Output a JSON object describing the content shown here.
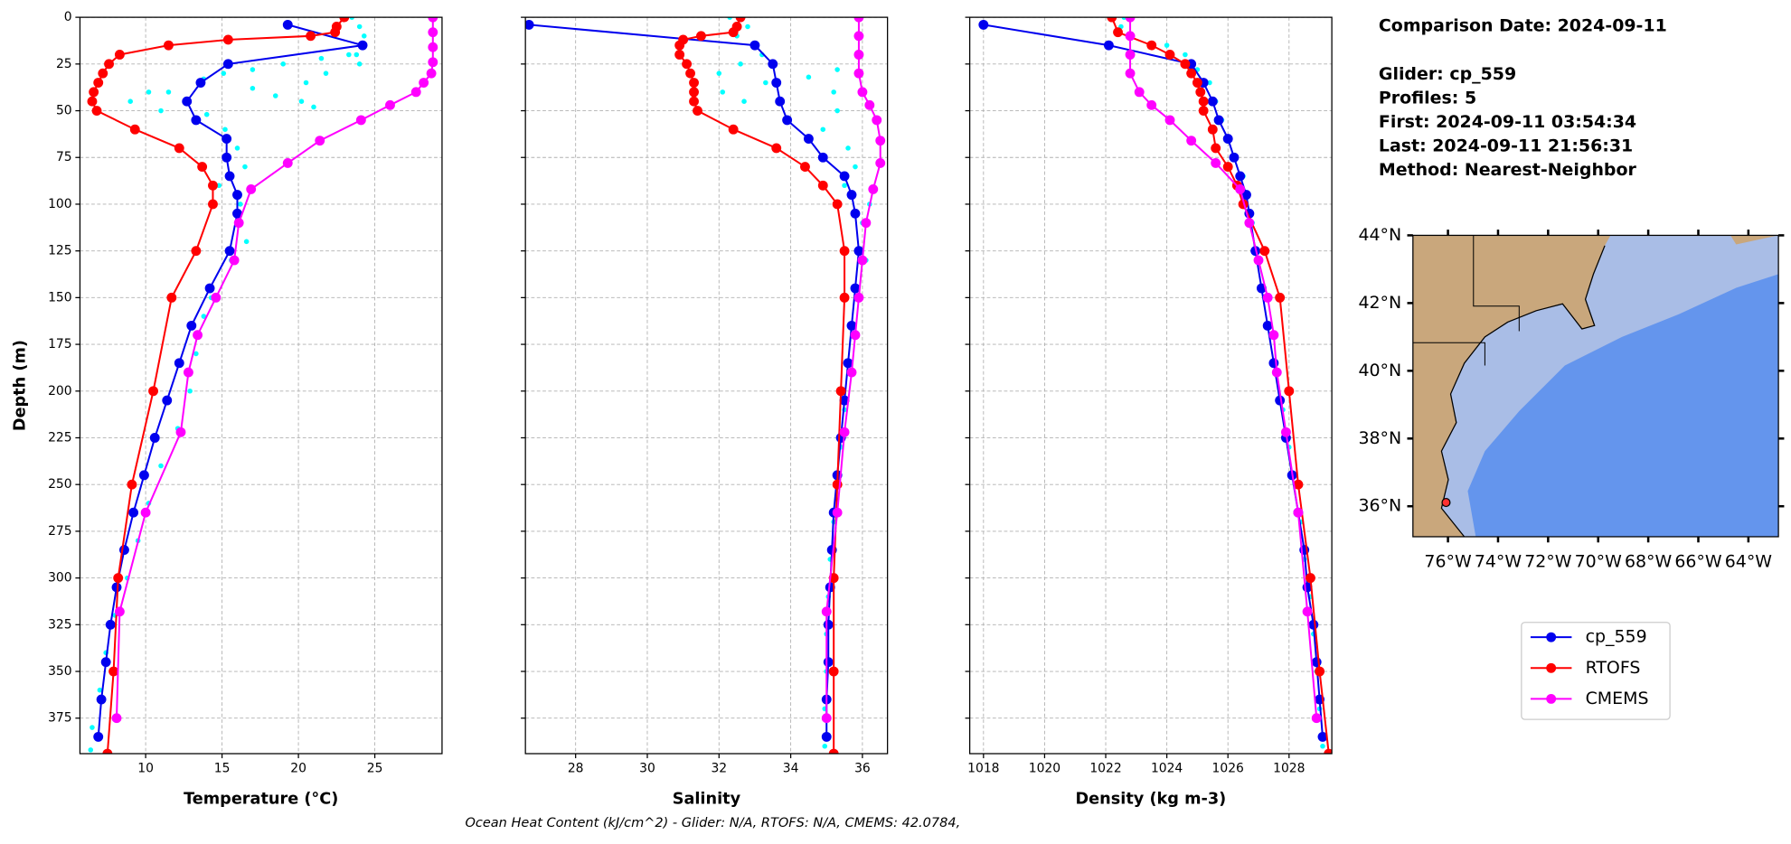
{
  "chart_data": [
    {
      "type": "line",
      "xlabel": "Temperature (°C)",
      "ylabel": "Depth (m)",
      "invert_y": true,
      "grid": true,
      "ytick_labels": true,
      "xlim": [
        5.7,
        29.4
      ],
      "ylim": [
        0,
        394
      ],
      "xticks": [
        10,
        15,
        20,
        25
      ],
      "yticks": [
        0,
        25,
        50,
        75,
        100,
        125,
        150,
        175,
        200,
        225,
        250,
        275,
        300,
        325,
        350,
        375
      ],
      "points": {
        "color": "#00ffff",
        "values": [
          23.5,
          24,
          24.3,
          23.8,
          24,
          23.3,
          21.5,
          19,
          17,
          15.1,
          13.8,
          11.5,
          10.2,
          9,
          11,
          14,
          17,
          18.5,
          20.2,
          21,
          20.5,
          21.8,
          15.2,
          16,
          16.5,
          14.8,
          16.2,
          16.6,
          15.6,
          14.3,
          13.8,
          13.3,
          12.9,
          12.1,
          11,
          10.2,
          9.5,
          8.8,
          8,
          7.4,
          7,
          6.5,
          6.4
        ],
        "depth": [
          0,
          5,
          10,
          20,
          25,
          20,
          22,
          25,
          28,
          30,
          33,
          40,
          40,
          45,
          50,
          52,
          38,
          42,
          45,
          48,
          35,
          30,
          60,
          70,
          80,
          90,
          100,
          120,
          130,
          150,
          160,
          180,
          200,
          220,
          240,
          260,
          280,
          300,
          320,
          340,
          360,
          380,
          392
        ]
      },
      "series": [
        {
          "name": "cp_559",
          "color": "#0000ee",
          "values": [
            19.3,
            24.2,
            15.4,
            13.6,
            12.7,
            13.3,
            15.3,
            15.3,
            15.5,
            16,
            16,
            15.5,
            14.2,
            13,
            12.2,
            11.4,
            10.6,
            9.9,
            9.2,
            8.6,
            8.1,
            7.7,
            7.4,
            7.1,
            6.9
          ],
          "depth": [
            4,
            15,
            25,
            35,
            45,
            55,
            65,
            75,
            85,
            95,
            105,
            125,
            145,
            165,
            185,
            205,
            225,
            245,
            265,
            285,
            305,
            325,
            345,
            365,
            385
          ]
        },
        {
          "name": "RTOFS",
          "color": "#ff0000",
          "values": [
            23,
            22.5,
            22.4,
            20.8,
            15.4,
            11.5,
            8.3,
            7.6,
            7.2,
            6.9,
            6.6,
            6.5,
            6.8,
            9.3,
            12.2,
            13.7,
            14.4,
            14.4,
            13.3,
            11.7,
            10.5,
            9.1,
            8.2,
            7.9,
            7.5
          ],
          "depth": [
            0,
            5,
            8,
            10,
            12,
            15,
            20,
            25,
            30,
            35,
            40,
            45,
            50,
            60,
            70,
            80,
            90,
            100,
            125,
            150,
            200,
            250,
            300,
            350,
            394
          ]
        },
        {
          "name": "CMEMS",
          "color": "#ff00ff",
          "values": [
            28.8,
            28.8,
            28.8,
            28.8,
            28.7,
            28.2,
            27.7,
            26,
            24.1,
            21.4,
            19.3,
            16.9,
            16.1,
            15.8,
            14.6,
            13.4,
            12.8,
            12.3,
            10,
            8.3,
            8.1
          ],
          "depth": [
            0,
            8,
            16,
            24,
            30,
            35,
            40,
            47,
            55,
            66,
            78,
            92,
            110,
            130,
            150,
            170,
            190,
            222,
            265,
            318,
            375
          ]
        }
      ]
    },
    {
      "type": "line",
      "xlabel": "Salinity",
      "invert_y": true,
      "grid": true,
      "ytick_labels": false,
      "xlim": [
        26.6,
        36.7
      ],
      "ylim": [
        0,
        394
      ],
      "xticks": [
        28,
        30,
        32,
        34,
        36
      ],
      "yticks": [
        0,
        25,
        50,
        75,
        100,
        125,
        150,
        175,
        200,
        225,
        250,
        275,
        300,
        325,
        350,
        375
      ],
      "points": {
        "color": "#00ffff",
        "values": [
          32.3,
          32.8,
          32.5,
          33.2,
          32.6,
          32,
          32.1,
          32.7,
          33.3,
          34.5,
          35.3,
          35.2,
          35.3,
          34.9,
          35.6,
          35.8,
          35.5,
          36.2,
          36,
          36.1,
          35.9,
          35.8,
          35.7,
          35.5,
          35.4,
          35.3,
          35.2,
          35.1,
          35.05,
          35,
          35,
          34.95,
          34.95
        ],
        "depth": [
          0,
          5,
          10,
          20,
          25,
          30,
          40,
          45,
          35,
          32,
          28,
          40,
          50,
          60,
          70,
          80,
          90,
          100,
          110,
          130,
          150,
          170,
          190,
          210,
          230,
          250,
          270,
          290,
          310,
          330,
          350,
          370,
          390
        ]
      },
      "series": [
        {
          "name": "cp_559",
          "color": "#0000ee",
          "values": [
            26.7,
            33,
            33.5,
            33.6,
            33.7,
            33.9,
            34.5,
            34.9,
            35.5,
            35.7,
            35.8,
            35.9,
            35.8,
            35.7,
            35.6,
            35.5,
            35.4,
            35.3,
            35.2,
            35.15,
            35.1,
            35.05,
            35.05,
            35,
            35
          ],
          "depth": [
            4,
            15,
            25,
            35,
            45,
            55,
            65,
            75,
            85,
            95,
            105,
            125,
            145,
            165,
            185,
            205,
            225,
            245,
            265,
            285,
            305,
            325,
            345,
            365,
            385
          ]
        },
        {
          "name": "RTOFS",
          "color": "#ff0000",
          "values": [
            32.6,
            32.5,
            32.4,
            31.5,
            31,
            30.9,
            30.9,
            31.1,
            31.2,
            31.3,
            31.3,
            31.3,
            31.4,
            32.4,
            33.6,
            34.4,
            34.9,
            35.3,
            35.5,
            35.5,
            35.4,
            35.3,
            35.2,
            35.2,
            35.2
          ],
          "depth": [
            0,
            5,
            8,
            10,
            12,
            15,
            20,
            25,
            30,
            35,
            40,
            45,
            50,
            60,
            70,
            80,
            90,
            100,
            125,
            150,
            200,
            250,
            300,
            350,
            394
          ]
        },
        {
          "name": "CMEMS",
          "color": "#ff00ff",
          "values": [
            35.9,
            35.9,
            35.9,
            35.9,
            36,
            36.2,
            36.4,
            36.5,
            36.5,
            36.3,
            36.1,
            36,
            35.9,
            35.8,
            35.7,
            35.5,
            35.3,
            35,
            35
          ],
          "depth": [
            0,
            10,
            20,
            30,
            40,
            47,
            55,
            66,
            78,
            92,
            110,
            130,
            150,
            170,
            190,
            222,
            265,
            318,
            375
          ]
        }
      ]
    },
    {
      "type": "line",
      "xlabel": "Density (kg m-3)",
      "invert_y": true,
      "grid": true,
      "ytick_labels": false,
      "xlim": [
        1017.55,
        1029.4
      ],
      "ylim": [
        0,
        394
      ],
      "xticks": [
        1018,
        1020,
        1022,
        1024,
        1026,
        1028
      ],
      "yticks": [
        0,
        25,
        50,
        75,
        100,
        125,
        150,
        175,
        200,
        225,
        250,
        275,
        300,
        325,
        350,
        375
      ],
      "points": {
        "color": "#00ffff",
        "values": [
          1022.6,
          1022.5,
          1022.8,
          1024,
          1024.6,
          1025,
          1025.4,
          1025.6,
          1025.8,
          1026,
          1026.2,
          1026.5,
          1026.6,
          1026.8,
          1027,
          1027.2,
          1027.4,
          1027.6,
          1027.8,
          1028,
          1028.2,
          1028.4,
          1028.5,
          1028.7,
          1028.8,
          1028.9,
          1029,
          1029.1
        ],
        "depth": [
          0,
          5,
          10,
          15,
          20,
          28,
          35,
          45,
          55,
          65,
          75,
          85,
          95,
          110,
          130,
          150,
          170,
          190,
          210,
          230,
          250,
          270,
          290,
          310,
          330,
          350,
          370,
          390
        ]
      },
      "series": [
        {
          "name": "cp_559",
          "color": "#0000ee",
          "values": [
            1018,
            1022.1,
            1024.8,
            1025.2,
            1025.5,
            1025.7,
            1026,
            1026.2,
            1026.4,
            1026.6,
            1026.7,
            1026.9,
            1027.1,
            1027.3,
            1027.5,
            1027.7,
            1027.9,
            1028.1,
            1028.3,
            1028.5,
            1028.6,
            1028.8,
            1028.9,
            1029,
            1029.1
          ],
          "depth": [
            4,
            15,
            25,
            35,
            45,
            55,
            65,
            75,
            85,
            95,
            105,
            125,
            145,
            165,
            185,
            205,
            225,
            245,
            265,
            285,
            305,
            325,
            345,
            365,
            385
          ]
        },
        {
          "name": "RTOFS",
          "color": "#ff0000",
          "values": [
            1022.2,
            1022.4,
            1023.5,
            1024.1,
            1024.6,
            1024.8,
            1025,
            1025.1,
            1025.2,
            1025.2,
            1025.5,
            1025.6,
            1026,
            1026.3,
            1026.5,
            1027.2,
            1027.7,
            1028,
            1028.3,
            1028.7,
            1029,
            1029.3
          ],
          "depth": [
            0,
            8,
            15,
            20,
            25,
            30,
            35,
            40,
            45,
            50,
            60,
            70,
            80,
            90,
            100,
            125,
            150,
            200,
            250,
            300,
            350,
            394
          ]
        },
        {
          "name": "CMEMS",
          "color": "#ff00ff",
          "values": [
            1022.8,
            1022.8,
            1022.8,
            1022.8,
            1023.1,
            1023.5,
            1024.1,
            1024.8,
            1025.6,
            1026.4,
            1026.7,
            1027,
            1027.3,
            1027.5,
            1027.6,
            1027.9,
            1028.3,
            1028.6,
            1028.9
          ],
          "depth": [
            0,
            10,
            20,
            30,
            40,
            47,
            55,
            66,
            78,
            92,
            110,
            130,
            150,
            170,
            190,
            222,
            265,
            318,
            375
          ]
        }
      ]
    }
  ],
  "info": [
    "Comparison Date: 2024-09-11",
    "Glider: cp_559",
    "Profiles: 5",
    "First: 2024-09-11 03:54:34",
    "Last: 2024-09-11 21:56:31",
    "Method: Nearest-Neighbor"
  ],
  "map": {
    "lonlim": [
      -77.4,
      -62.8
    ],
    "latlim": [
      35.1,
      44
    ],
    "lat_ticks": [
      {
        "value": 44,
        "label": "44°N"
      },
      {
        "value": 42,
        "label": "42°N"
      },
      {
        "value": 40,
        "label": "40°N"
      },
      {
        "value": 38,
        "label": "38°N"
      },
      {
        "value": 36,
        "label": "36°N"
      }
    ],
    "lon_ticks": [
      {
        "value": -76,
        "label": "76°W"
      },
      {
        "value": -74,
        "label": "74°W"
      },
      {
        "value": -72,
        "label": "72°W"
      },
      {
        "value": -70,
        "label": "70°W"
      },
      {
        "value": -68,
        "label": "68°W"
      },
      {
        "value": -66,
        "label": "66°W"
      },
      {
        "value": -64,
        "label": "64°W"
      }
    ]
  },
  "footer": "Ocean Heat Content (kJ/cm^2) - Glider: N/A,  RTOFS: N/A,  CMEMS: 42.0784,"
}
